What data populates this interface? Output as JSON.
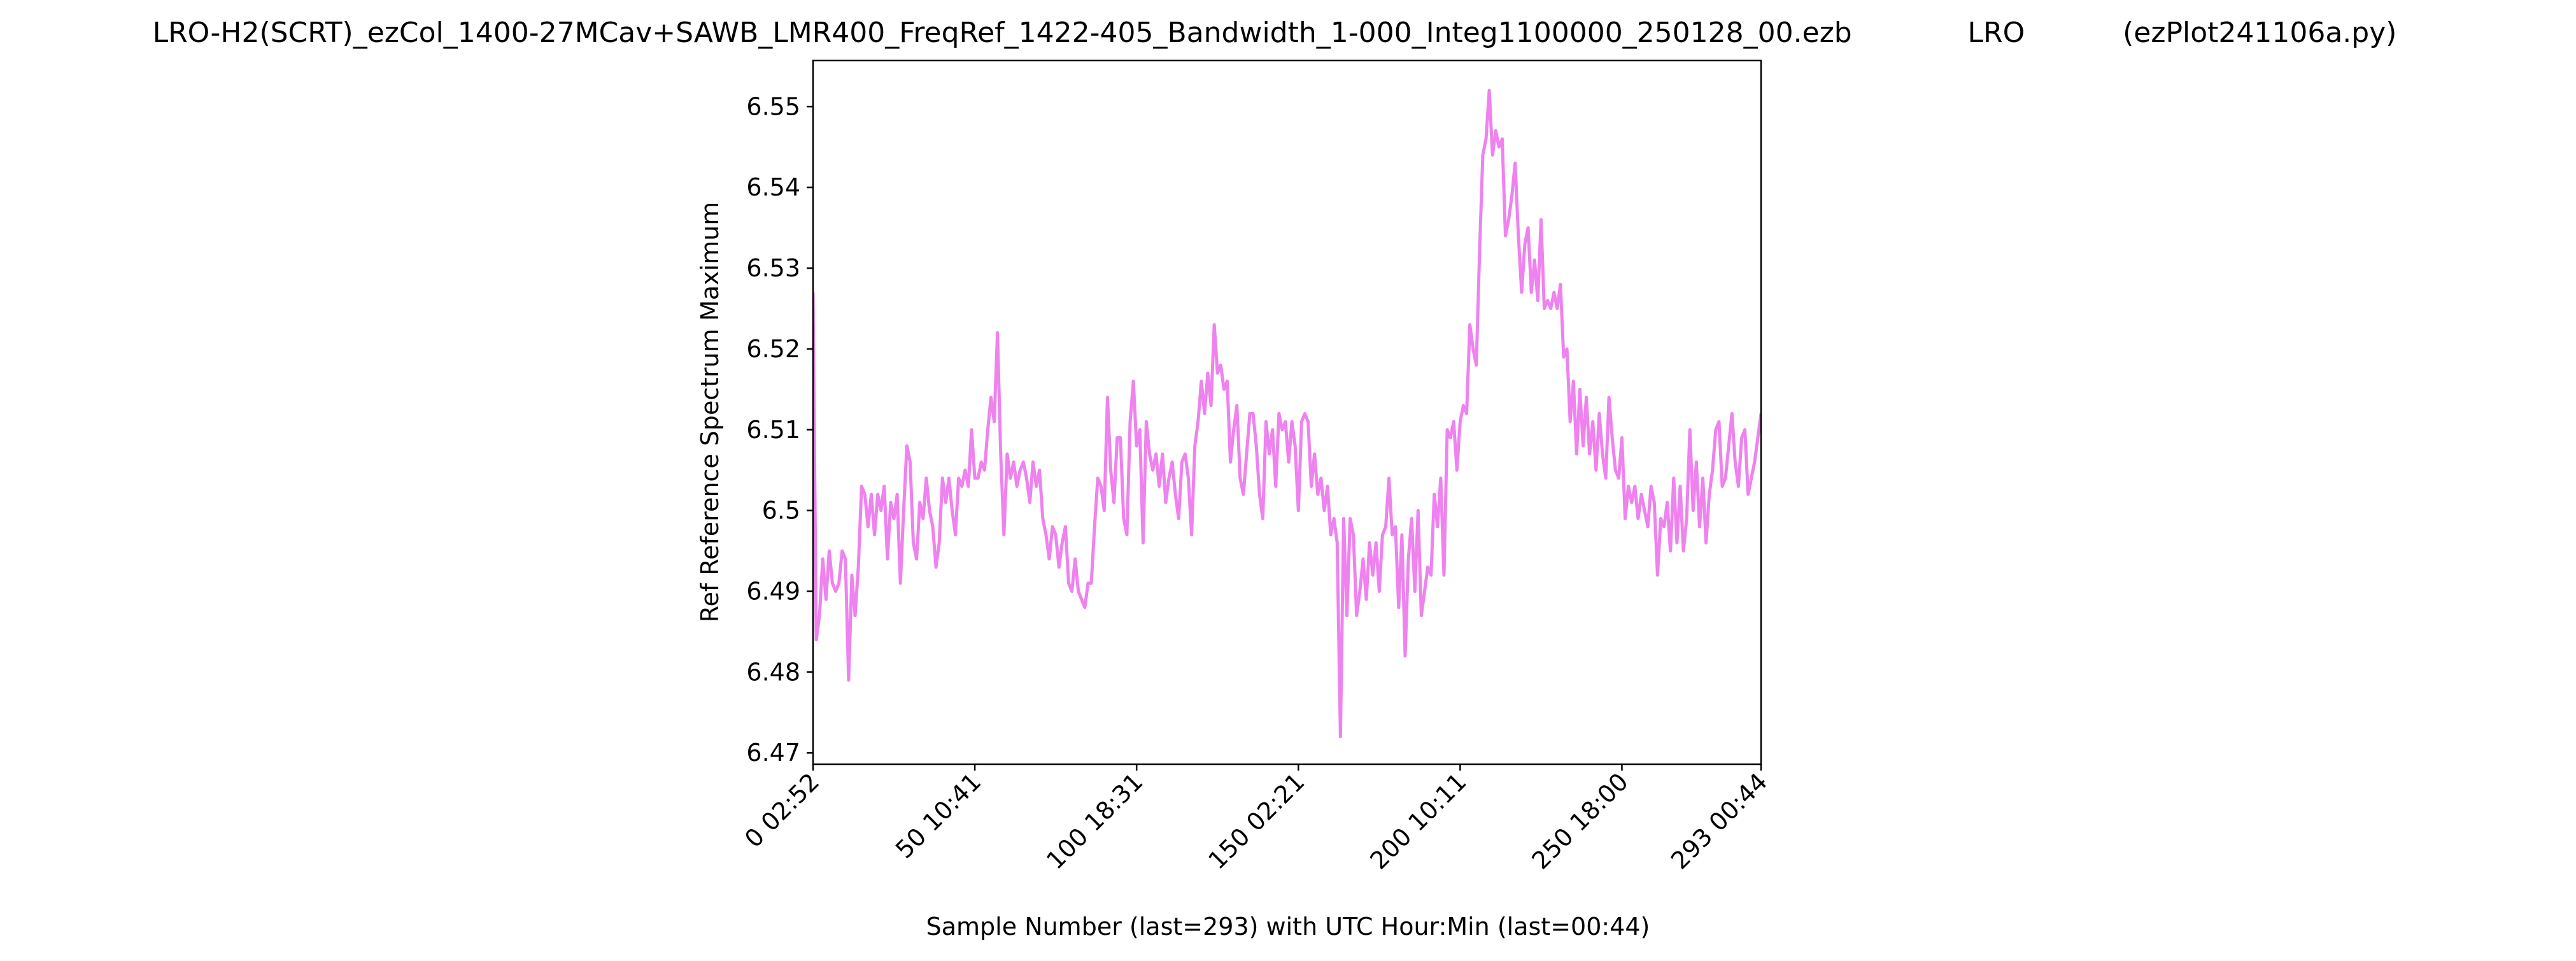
{
  "chart_data": {
    "type": "line",
    "title": "LRO-H2(SCRT)_ezCol_1400-27MCav+SAWB_LMR400_FreqRef_1422-405_Bandwidth_1-000_Integ1100000_250128_00.ezb             LRO           (ezPlot241106a.py)",
    "x_label": "Sample Number (last=293) with UTC Hour:Min (last=00:44)",
    "y_label": "Ref Reference Spectrum Maximum",
    "xlim": [
      0,
      293
    ],
    "xticks": [
      {
        "value": 0,
        "label": "0  02:52"
      },
      {
        "value": 50,
        "label": "50  10:41"
      },
      {
        "value": 100,
        "label": "100  18:31"
      },
      {
        "value": 150,
        "label": "150  02:21"
      },
      {
        "value": 200,
        "label": "200  10:11"
      },
      {
        "value": 250,
        "label": "250  18:00"
      },
      {
        "value": 293,
        "label": "293  00:44"
      }
    ],
    "ylim": [
      6.4686,
      6.5557
    ],
    "yticks": [
      6.47,
      6.48,
      6.49,
      6.5,
      6.51,
      6.52,
      6.53,
      6.54,
      6.55
    ],
    "grid": false,
    "series": [
      {
        "color": "#ee82ee",
        "values": [
          6.527,
          6.484,
          6.487,
          6.494,
          6.489,
          6.495,
          6.491,
          6.49,
          6.491,
          6.495,
          6.494,
          6.479,
          6.492,
          6.487,
          6.493,
          6.503,
          6.502,
          6.498,
          6.502,
          6.497,
          6.502,
          6.5,
          6.503,
          6.494,
          6.501,
          6.499,
          6.502,
          6.491,
          6.5,
          6.508,
          6.506,
          6.496,
          6.494,
          6.501,
          6.499,
          6.504,
          6.5,
          6.498,
          6.493,
          6.496,
          6.504,
          6.501,
          6.504,
          6.5,
          6.497,
          6.504,
          6.503,
          6.505,
          6.503,
          6.51,
          6.504,
          6.504,
          6.506,
          6.505,
          6.51,
          6.514,
          6.511,
          6.522,
          6.507,
          6.497,
          6.507,
          6.504,
          6.506,
          6.503,
          6.505,
          6.506,
          6.504,
          6.501,
          6.506,
          6.503,
          6.505,
          6.499,
          6.497,
          6.494,
          6.498,
          6.497,
          6.493,
          6.496,
          6.498,
          6.491,
          6.49,
          6.494,
          6.49,
          6.489,
          6.488,
          6.491,
          6.491,
          6.498,
          6.504,
          6.503,
          6.5,
          6.514,
          6.505,
          6.501,
          6.509,
          6.509,
          6.499,
          6.497,
          6.511,
          6.516,
          6.508,
          6.51,
          6.496,
          6.511,
          6.507,
          6.505,
          6.507,
          6.503,
          6.507,
          6.501,
          6.504,
          6.506,
          6.502,
          6.499,
          6.506,
          6.507,
          6.504,
          6.497,
          6.508,
          6.511,
          6.516,
          6.512,
          6.517,
          6.513,
          6.523,
          6.517,
          6.518,
          6.515,
          6.516,
          6.506,
          6.51,
          6.513,
          6.504,
          6.502,
          6.507,
          6.512,
          6.512,
          6.508,
          6.502,
          6.499,
          6.511,
          6.507,
          6.51,
          6.503,
          6.512,
          6.51,
          6.511,
          6.506,
          6.511,
          6.508,
          6.5,
          6.511,
          6.512,
          6.511,
          6.503,
          6.507,
          6.502,
          6.504,
          6.5,
          6.503,
          6.497,
          6.499,
          6.496,
          6.472,
          6.499,
          6.487,
          6.499,
          6.497,
          6.487,
          6.49,
          6.494,
          6.489,
          6.496,
          6.492,
          6.496,
          6.49,
          6.497,
          6.498,
          6.504,
          6.497,
          6.498,
          6.488,
          6.497,
          6.482,
          6.494,
          6.499,
          6.49,
          6.5,
          6.487,
          6.49,
          6.493,
          6.492,
          6.502,
          6.498,
          6.504,
          6.492,
          6.51,
          6.509,
          6.511,
          6.505,
          6.511,
          6.513,
          6.512,
          6.523,
          6.52,
          6.518,
          6.532,
          6.544,
          6.546,
          6.552,
          6.544,
          6.547,
          6.545,
          6.546,
          6.534,
          6.536,
          6.539,
          6.543,
          6.534,
          6.527,
          6.533,
          6.535,
          6.527,
          6.531,
          6.526,
          6.536,
          6.525,
          6.526,
          6.525,
          6.527,
          6.525,
          6.528,
          6.519,
          6.52,
          6.511,
          6.516,
          6.507,
          6.515,
          6.508,
          6.514,
          6.507,
          6.511,
          6.505,
          6.512,
          6.507,
          6.504,
          6.514,
          6.509,
          6.505,
          6.504,
          6.509,
          6.499,
          6.503,
          6.501,
          6.503,
          6.499,
          6.502,
          6.5,
          6.498,
          6.503,
          6.501,
          6.492,
          6.499,
          6.498,
          6.501,
          6.495,
          6.504,
          6.496,
          6.503,
          6.495,
          6.499,
          6.51,
          6.5,
          6.506,
          6.498,
          6.504,
          6.496,
          6.502,
          6.505,
          6.51,
          6.511,
          6.503,
          6.504,
          6.508,
          6.512,
          6.506,
          6.503,
          6.509,
          6.51,
          6.502,
          6.504,
          6.506,
          6.509,
          6.512
        ]
      }
    ]
  }
}
